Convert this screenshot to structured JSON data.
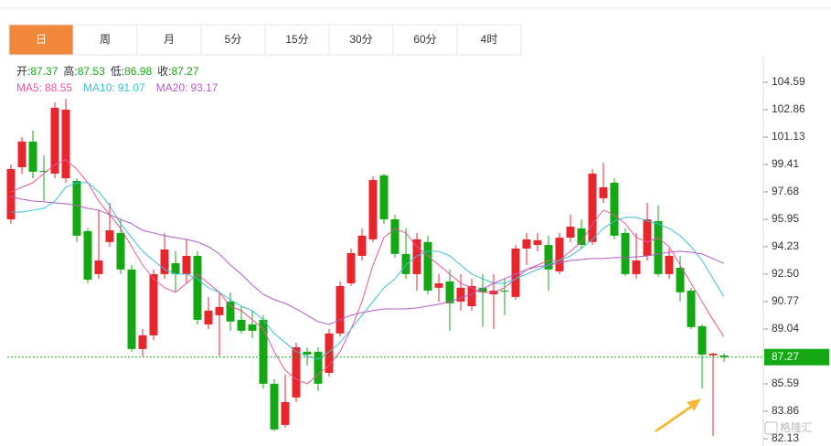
{
  "tabs": [
    "日",
    "周",
    "月",
    "5分",
    "15分",
    "30分",
    "60分",
    "4时"
  ],
  "active_tab": 0,
  "watermark": "格隆汇",
  "chart_data": {
    "type": "candlestick",
    "stat_labels": [
      "开:",
      "高:",
      "低:",
      "收:"
    ],
    "up_color": "#e8262d",
    "down_color": "#14a914",
    "open": [
      95.95,
      99.23,
      100.85,
      99.0,
      98.83,
      98.54,
      98.37,
      95.21,
      92.5,
      94.52,
      95.09,
      92.79,
      87.78,
      88.64,
      92.5,
      93.19,
      92.5,
      93.65,
      89.33,
      89.91,
      90.77,
      89.62,
      89.33,
      89.62,
      85.59,
      83.0,
      84.73,
      87.61,
      87.61,
      86.28,
      88.76,
      91.92,
      93.65,
      94.69,
      98.72,
      95.95,
      93.77,
      92.5,
      94.52,
      91.64,
      92.04,
      90.77,
      90.48,
      91.64,
      91.23,
      91.46,
      91.06,
      94.11,
      94.34,
      94.34,
      92.67,
      94.8,
      95.38,
      94.52,
      97.28,
      98.26,
      95.09,
      92.5,
      93.65,
      95.84,
      92.5,
      92.9,
      91.46,
      89.22,
      87.38,
      87.37
    ],
    "high": [
      99.41,
      101.13,
      101.54,
      99.98,
      103.32,
      103.55,
      98.54,
      95.38,
      96.53,
      96.99,
      95.95,
      93.07,
      89.04,
      92.79,
      95.09,
      93.94,
      94.69,
      93.94,
      91.06,
      91.35,
      91.35,
      90.48,
      90.2,
      89.91,
      85.88,
      86.17,
      88.18,
      87.89,
      87.89,
      89.04,
      92.04,
      94.11,
      95.38,
      98.66,
      98.83,
      96.24,
      95.38,
      95.09,
      94.92,
      92.5,
      92.79,
      92.5,
      92.21,
      92.5,
      92.5,
      92.21,
      94.34,
      95.09,
      95.09,
      94.92,
      95.09,
      96.24,
      95.95,
      99.12,
      99.52,
      98.54,
      95.38,
      95.09,
      96.99,
      96.82,
      94.11,
      93.65,
      91.64,
      89.33,
      87.55,
      87.53
    ],
    "low": [
      95.67,
      98.83,
      98.54,
      97.1,
      98.54,
      98.26,
      94.52,
      91.92,
      92.21,
      94.23,
      92.5,
      87.61,
      87.32,
      88.35,
      92.21,
      91.35,
      91.92,
      89.33,
      89.04,
      87.32,
      88.93,
      88.76,
      88.47,
      85.3,
      82.6,
      82.83,
      84.44,
      86.74,
      85.13,
      86.05,
      88.58,
      91.75,
      93.36,
      94.52,
      95.67,
      93.54,
      92.21,
      91.46,
      91.23,
      90.77,
      88.93,
      90.2,
      90.2,
      89.16,
      89.04,
      89.91,
      90.89,
      93.07,
      93.94,
      91.46,
      92.5,
      94.52,
      94.11,
      94.34,
      96.99,
      94.69,
      92.38,
      92.21,
      93.36,
      92.33,
      92.21,
      90.77,
      89.04,
      85.3,
      82.31,
      86.98
    ],
    "close": [
      99.12,
      100.85,
      98.95,
      98.95,
      102.98,
      102.86,
      94.92,
      92.15,
      93.36,
      95.26,
      92.79,
      87.78,
      88.64,
      92.5,
      94.05,
      92.5,
      93.65,
      89.62,
      90.2,
      90.43,
      89.51,
      88.93,
      88.93,
      85.59,
      82.71,
      84.44,
      87.89,
      87.43,
      85.59,
      88.76,
      91.75,
      93.82,
      94.92,
      98.43,
      95.95,
      93.77,
      92.5,
      94.69,
      91.46,
      91.92,
      90.66,
      91.64,
      91.75,
      91.35,
      91.46,
      91.4,
      94.11,
      94.69,
      94.63,
      92.79,
      94.8,
      95.49,
      94.34,
      98.83,
      97.97,
      94.92,
      92.5,
      93.36,
      95.95,
      92.5,
      93.65,
      91.35,
      89.16,
      87.43,
      87.49,
      87.27
    ],
    "series": [
      {
        "name": "MA5:",
        "color": "#e8559a",
        "values": [
          97.68,
          97.97,
          98.26,
          98.83,
          99.41,
          99.7,
          99.12,
          98.26,
          97.1,
          96.24,
          95.38,
          94.23,
          93.07,
          92.21,
          91.64,
          91.35,
          91.92,
          92.5,
          91.92,
          91.35,
          90.48,
          90.2,
          89.62,
          89.04,
          87.61,
          86.45,
          85.88,
          85.59,
          86.17,
          86.74,
          87.61,
          89.04,
          90.77,
          93.07,
          94.8,
          95.38,
          95.09,
          94.23,
          93.65,
          93.07,
          92.5,
          91.92,
          91.64,
          91.35,
          91.35,
          91.64,
          92.21,
          92.79,
          93.07,
          93.36,
          93.36,
          93.94,
          94.52,
          95.67,
          96.53,
          96.24,
          95.67,
          94.8,
          94.52,
          94.8,
          94.23,
          93.07,
          91.92,
          90.77,
          89.62,
          88.55
        ]
      },
      {
        "name": "MA10:",
        "color": "#3bbfd6",
        "values": [
          96.41,
          96.41,
          96.53,
          96.64,
          97.1,
          97.97,
          98.26,
          98.26,
          97.68,
          96.82,
          95.67,
          94.8,
          93.94,
          93.36,
          92.79,
          92.5,
          92.5,
          92.21,
          91.64,
          91.35,
          90.89,
          90.48,
          90.2,
          89.62,
          88.76,
          88.18,
          87.61,
          87.32,
          87.15,
          87.61,
          88.18,
          89.04,
          89.91,
          90.77,
          91.64,
          92.21,
          93.07,
          93.65,
          93.94,
          93.94,
          93.65,
          93.07,
          92.5,
          92.21,
          91.92,
          91.92,
          92.21,
          92.5,
          92.79,
          93.07,
          93.36,
          93.65,
          94.11,
          94.69,
          95.38,
          95.84,
          96.07,
          96.07,
          95.84,
          95.67,
          95.38,
          94.92,
          94.23,
          93.36,
          92.21,
          91.07
        ]
      },
      {
        "name": "MA20:",
        "color": "#b35cc8",
        "values": [
          97.39,
          97.22,
          97.1,
          97.05,
          96.99,
          96.93,
          96.82,
          96.64,
          96.53,
          96.24,
          95.95,
          95.67,
          95.26,
          95.09,
          94.92,
          94.8,
          94.69,
          94.52,
          94.23,
          93.77,
          93.07,
          92.5,
          91.81,
          91.23,
          90.89,
          90.66,
          90.31,
          89.91,
          89.51,
          89.33,
          89.62,
          89.91,
          90.08,
          90.2,
          90.31,
          90.31,
          90.31,
          90.37,
          90.48,
          90.6,
          90.77,
          91.0,
          91.23,
          91.58,
          91.92,
          92.21,
          92.5,
          92.79,
          92.96,
          93.07,
          93.19,
          93.36,
          93.42,
          93.48,
          93.48,
          93.54,
          93.54,
          93.59,
          93.65,
          93.77,
          93.88,
          93.94,
          93.88,
          93.77,
          93.48,
          93.17
        ]
      }
    ],
    "ylim": [
      81.67,
      106.2
    ],
    "yticks": [
      104.59,
      102.86,
      101.13,
      99.41,
      97.68,
      95.95,
      94.23,
      {
        "value": 92.5,
        "label": "92.50"
      },
      90.77,
      89.04,
      85.59,
      83.86,
      82.13
    ]
  }
}
